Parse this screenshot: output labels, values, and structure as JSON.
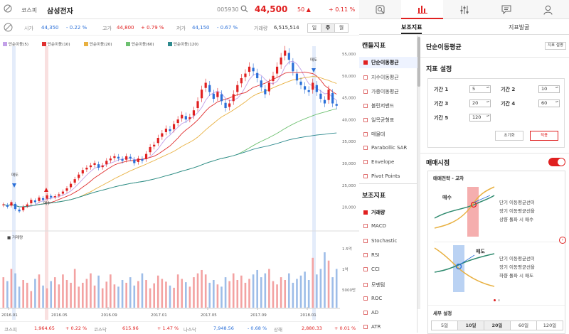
{
  "header": {
    "market": "코스피",
    "stock_name": "삼성전자",
    "code": "005930",
    "price": "44,500",
    "change": "50",
    "change_pct": "+ 0.11 %"
  },
  "info": {
    "open_label": "시가",
    "open": "44,350",
    "open_pct": "- 0.22 %",
    "high_label": "고가",
    "high": "44,800",
    "high_pct": "+ 0.79 %",
    "low_label": "저가",
    "low": "44,150",
    "low_pct": "- 0.67 %",
    "vol_label": "거래량",
    "vol": "6,515,514",
    "periods": [
      "일",
      "주",
      "월"
    ],
    "active_period": "주"
  },
  "legend": [
    "단순이동(5)",
    "단순이동(10)",
    "단순이동(20)",
    "단순이동(60)",
    "단순이동(120)"
  ],
  "colors": {
    "ma5": "#c3a0e8",
    "ma10": "#e03030",
    "ma20": "#e8b040",
    "ma60": "#6dc070",
    "ma120": "#2e8a8e",
    "up": "#e02020",
    "down": "#2a6fd8",
    "accent": "#e02020"
  },
  "chart_data": {
    "type": "candlestick",
    "x_ticks": [
      "2016.01",
      "2016.05",
      "2016.09",
      "2017.01",
      "2017.05",
      "2017.09",
      "2018.01"
    ],
    "y_ticks": [
      "55,000",
      "50,000",
      "45,000",
      "40,000",
      "35,000",
      "30,000",
      "25,000",
      "20,000"
    ],
    "vol_ticks": [
      "1.5억",
      "1억",
      "5000만"
    ],
    "signals": {
      "sell": "매도",
      "buy": "매수"
    },
    "volume_label": "거래량",
    "ylim": [
      18000,
      57000
    ],
    "closes": [
      23000,
      22500,
      23500,
      22000,
      21500,
      22500,
      23000,
      24000,
      23500,
      24500,
      24000,
      25000,
      24500,
      24800,
      25200,
      25800,
      26500,
      27500,
      28500,
      29500,
      30500,
      31000,
      31500,
      32000,
      31000,
      31500,
      32500,
      33000,
      33500,
      33000,
      32500,
      33500,
      33000,
      32000,
      33000,
      32500,
      34000,
      35500,
      36000,
      37500,
      38500,
      39500,
      39000,
      40500,
      41500,
      42500,
      41500,
      42000,
      43500,
      45500,
      48000,
      49500,
      47500,
      46000,
      47500,
      45500,
      44000,
      45000,
      47000,
      49000,
      50500,
      51500,
      53000,
      52000,
      50500,
      48500,
      47000,
      49500,
      51000,
      53000,
      55000,
      56500,
      54500,
      52000,
      50000,
      49000,
      48000,
      47500,
      49500,
      47500,
      46000,
      45000,
      48000,
      45000,
      44500
    ],
    "volumes": [
      0.55,
      0.48,
      0.7,
      0.62,
      0.38,
      0.5,
      0.45,
      0.3,
      0.52,
      0.6,
      0.4,
      0.35,
      0.48,
      0.55,
      0.42,
      0.6,
      0.5,
      0.45,
      0.7,
      0.38,
      0.45,
      0.52,
      0.62,
      0.4,
      0.58,
      0.35,
      0.47,
      0.6,
      0.42,
      0.38,
      0.5,
      0.45,
      0.55,
      0.4,
      0.48,
      0.62,
      0.5,
      0.35,
      0.44,
      0.58,
      0.52,
      0.47,
      0.4,
      0.36,
      0.6,
      0.52,
      0.46,
      0.38,
      0.55,
      0.62,
      0.68,
      0.6,
      0.45,
      0.5,
      0.42,
      0.38,
      0.55,
      0.48,
      0.62,
      0.5,
      0.58,
      0.45,
      0.52,
      0.6,
      0.68,
      0.55,
      0.62,
      0.7,
      0.48,
      0.42,
      0.55,
      0.5,
      0.62,
      0.45,
      0.52,
      0.58,
      0.65,
      0.5,
      0.9,
      0.6,
      0.7,
      1.0,
      0.85,
      0.55,
      0.7
    ]
  },
  "bottom": {
    "kospi_label": "코스피",
    "kospi": "1,964.65",
    "kospi_pct": "+ 0.22 %",
    "kosdaq_label": "코스닥",
    "kosdaq": "615.96",
    "kosdaq_pct": "+ 1.47 %",
    "nasdaq_label": "나스닥",
    "nasdaq": "7,948.56",
    "nasdaq_pct": "- 0.68 %",
    "sh_label": "상해",
    "sh": "2,880.33",
    "sh_pct": "+ 0.01 %"
  },
  "right": {
    "top_icons": [
      "search-icon",
      "chart-icon",
      "settings-icon",
      "chat-icon",
      "user-icon"
    ],
    "tabs": [
      "보조지표",
      "지표발굴"
    ],
    "candle_head": "캔들지표",
    "candle_items": [
      "단순이동평균",
      "지수이동평균",
      "가중이동평균",
      "볼린저밴드",
      "일목균형표",
      "매물대",
      "Parabollic SAR",
      "Envelope",
      "Pivot Points"
    ],
    "aux_head": "보조지표",
    "aux_items": [
      "거래량",
      "MACD",
      "Stochastic",
      "RSI",
      "CCI",
      "모멘텀",
      "ROC",
      "AD",
      "ATR"
    ],
    "panel_title": "단순이동평균",
    "help_btn": "지표 설명",
    "setting_title": "지표 설정",
    "periods": [
      {
        "label": "기간 1",
        "value": "5"
      },
      {
        "label": "기간 2",
        "value": "10"
      },
      {
        "label": "기간 3",
        "value": "20"
      },
      {
        "label": "기간 4",
        "value": "60"
      },
      {
        "label": "기간 5",
        "value": "120"
      }
    ],
    "reset_btn": "초기화",
    "apply_btn": "적용",
    "signal_title": "매매시점",
    "strategy_title": "매매전략 - 교차",
    "buy_label": "매수",
    "sell_label": "매도",
    "buy_lines": [
      "단기 이동평균선이",
      "장기 이동평균선을",
      "상향 돌파 시 매수"
    ],
    "sell_lines": [
      "단기 이동평균선이",
      "장기 이동평균선을",
      "하향 돌파 시 매도"
    ],
    "detail_title": "세부 설정",
    "durations": [
      "5일",
      "10일",
      "20일",
      "60일",
      "120일"
    ],
    "active_durations": [
      "10일",
      "20일"
    ]
  }
}
